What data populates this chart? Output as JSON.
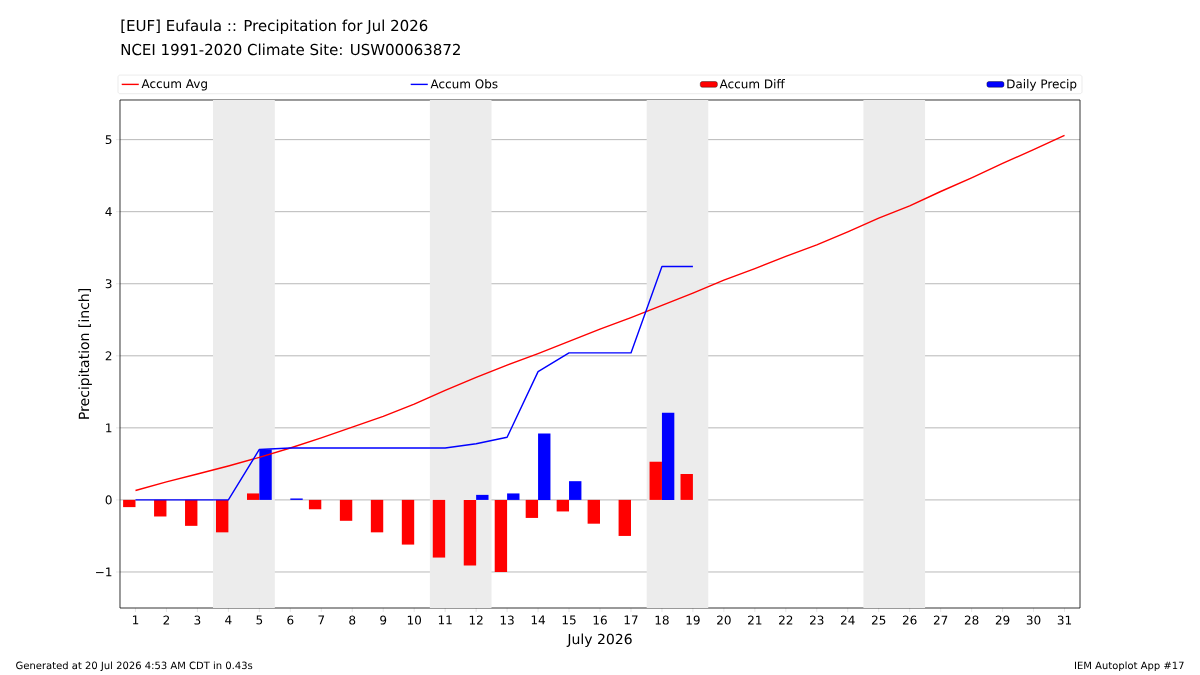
{
  "chart_data": {
    "type": "line",
    "title": "[EUF] Eufaula :: Precipitation for Jul 2026",
    "subtitle": "NCEI 1991-2020 Climate Site: USW00063872",
    "xlabel": "July 2026",
    "ylabel": "Precipitation [inch]",
    "x": [
      1,
      2,
      3,
      4,
      5,
      6,
      7,
      8,
      9,
      10,
      11,
      12,
      13,
      14,
      15,
      16,
      17,
      18,
      19,
      20,
      21,
      22,
      23,
      24,
      25,
      26,
      27,
      28,
      29,
      30,
      31
    ],
    "series": [
      {
        "name": "Accum Avg",
        "color": "#ff0000",
        "values": [
          0.13,
          0.25,
          0.36,
          0.47,
          0.59,
          0.72,
          0.86,
          1.01,
          1.16,
          1.33,
          1.52,
          1.7,
          1.87,
          2.03,
          2.2,
          2.37,
          2.53,
          2.7,
          2.87,
          3.05,
          3.21,
          3.38,
          3.54,
          3.72,
          3.91,
          4.08,
          4.28,
          4.47,
          4.67,
          4.86,
          5.06
        ]
      },
      {
        "name": "Accum Obs",
        "color": "#0000ff",
        "values": [
          0,
          0,
          0,
          0,
          0.7,
          0.72,
          0.72,
          0.72,
          0.72,
          0.72,
          0.72,
          0.78,
          0.87,
          1.78,
          2.04,
          2.04,
          2.04,
          3.24,
          3.24,
          null,
          null,
          null,
          null,
          null,
          null,
          null,
          null,
          null,
          null,
          null,
          null
        ]
      },
      {
        "name": "Accum Diff",
        "type": "bar",
        "color": "#ff0000",
        "values": [
          -0.1,
          -0.23,
          -0.36,
          -0.45,
          0.09,
          0,
          -0.13,
          -0.29,
          -0.45,
          -0.62,
          -0.8,
          -0.91,
          -1.0,
          -0.25,
          -0.16,
          -0.33,
          -0.5,
          0.53,
          0.36,
          null,
          null,
          null,
          null,
          null,
          null,
          null,
          null,
          null,
          null,
          null,
          null
        ]
      },
      {
        "name": "Daily Precip",
        "type": "bar",
        "color": "#0000ff",
        "values": [
          0,
          0,
          0,
          0,
          0.7,
          0.02,
          0,
          0,
          0,
          0,
          0,
          0.07,
          0.09,
          0.92,
          0.26,
          0,
          0,
          1.21,
          0,
          null,
          null,
          null,
          null,
          null,
          null,
          null,
          null,
          null,
          null,
          null,
          null
        ]
      }
    ],
    "xlim": [
      0.5,
      31.5
    ],
    "xticks": [
      1,
      2,
      3,
      4,
      5,
      6,
      7,
      8,
      9,
      10,
      11,
      12,
      13,
      14,
      15,
      16,
      17,
      18,
      19,
      20,
      21,
      22,
      23,
      24,
      25,
      26,
      27,
      28,
      29,
      30,
      31
    ],
    "ylim": [
      -1.5,
      5.55
    ],
    "yticks": [
      {
        "value": -1,
        "label": "−1"
      },
      0,
      1,
      2,
      3,
      4,
      5
    ],
    "bands": [
      {
        "axis": "x",
        "from": 3.5,
        "to": 5.5,
        "color": "#ececec"
      },
      {
        "axis": "x",
        "from": 10.5,
        "to": 12.5,
        "color": "#ececec"
      },
      {
        "axis": "x",
        "from": 17.5,
        "to": 19.5,
        "color": "#ececec"
      },
      {
        "axis": "x",
        "from": 24.5,
        "to": 26.5,
        "color": "#ececec"
      }
    ],
    "grid": "y",
    "legend": "top",
    "annotations": [
      "Generated at 20 Jul 2026 4:53 AM CDT in 0.43s",
      "IEM Autoplot App #17"
    ]
  }
}
